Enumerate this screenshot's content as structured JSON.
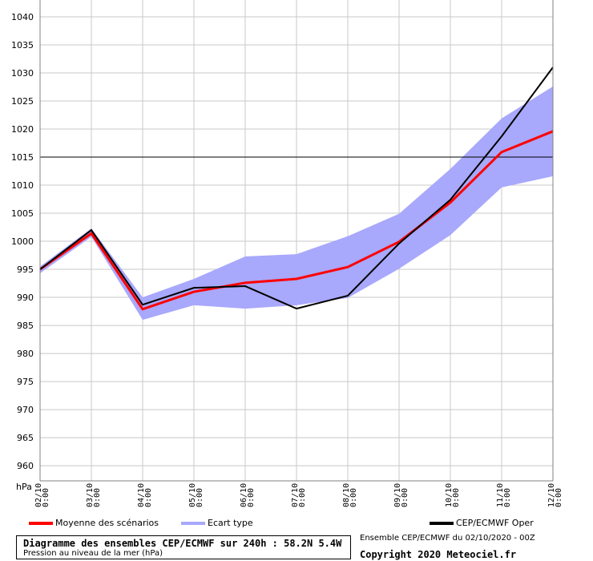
{
  "chart_data": {
    "type": "line",
    "title": "Diagramme des ensembles CEP/ECMWF sur 240h : 58.2N 5.4W",
    "subtitle": "Pression au niveau de la mer (hPa)",
    "ylabel": "hPa",
    "ylim": [
      957.3,
      1043
    ],
    "yticks": [
      960,
      965,
      970,
      975,
      980,
      985,
      990,
      995,
      1000,
      1005,
      1010,
      1015,
      1020,
      1025,
      1030,
      1035,
      1040
    ],
    "reference_line": 1015,
    "grid": true,
    "categories": [
      "02/10 0:00",
      "03/10 0:00",
      "04/10 0:00",
      "05/10 0:00",
      "06/10 0:00",
      "07/10 0:00",
      "08/10 0:00",
      "09/10 0:00",
      "10/10 0:00",
      "11/10 0:00",
      "12/10 0:00"
    ],
    "x_dates": [
      "02/10",
      "03/10",
      "04/10",
      "05/10",
      "06/10",
      "07/10",
      "08/10",
      "09/10",
      "10/10",
      "11/10",
      "12/10"
    ],
    "x_times": [
      "0:00",
      "0:00",
      "0:00",
      "0:00",
      "0:00",
      "0:00",
      "0:00",
      "0:00",
      "0:00",
      "0:00",
      "0:00"
    ],
    "band": {
      "name": "Ecart type",
      "color": "#a8a8fc",
      "upper": [
        995.5,
        1002.3,
        990,
        993.3,
        997.3,
        997.7,
        1000.9,
        1004.9,
        1012.9,
        1021.9,
        1027.6
      ],
      "lower": [
        994.3,
        1000.8,
        986,
        988.6,
        988,
        988.6,
        989.9,
        995.1,
        1001.1,
        1009.6,
        1011.6
      ]
    },
    "series": [
      {
        "name": "Moyenne des scénarios",
        "color": "#ff0000",
        "values": [
          995,
          1001.4,
          987.9,
          991,
          992.6,
          993.3,
          995.4,
          999.9,
          1006.9,
          1015.9,
          1019.6
        ]
      },
      {
        "name": "CEP/ECMWF Oper",
        "color": "#000000",
        "values": [
          995,
          1002,
          988.7,
          991.7,
          992,
          988,
          990.3,
          999.6,
          1007.4,
          1018.7,
          1031
        ]
      }
    ],
    "legend_position": "bottom"
  },
  "footer": {
    "run": "Ensemble CEP/ECMWF du 02/10/2020 - 00Z",
    "copyright": "Copyright 2020 Meteociel.fr"
  }
}
